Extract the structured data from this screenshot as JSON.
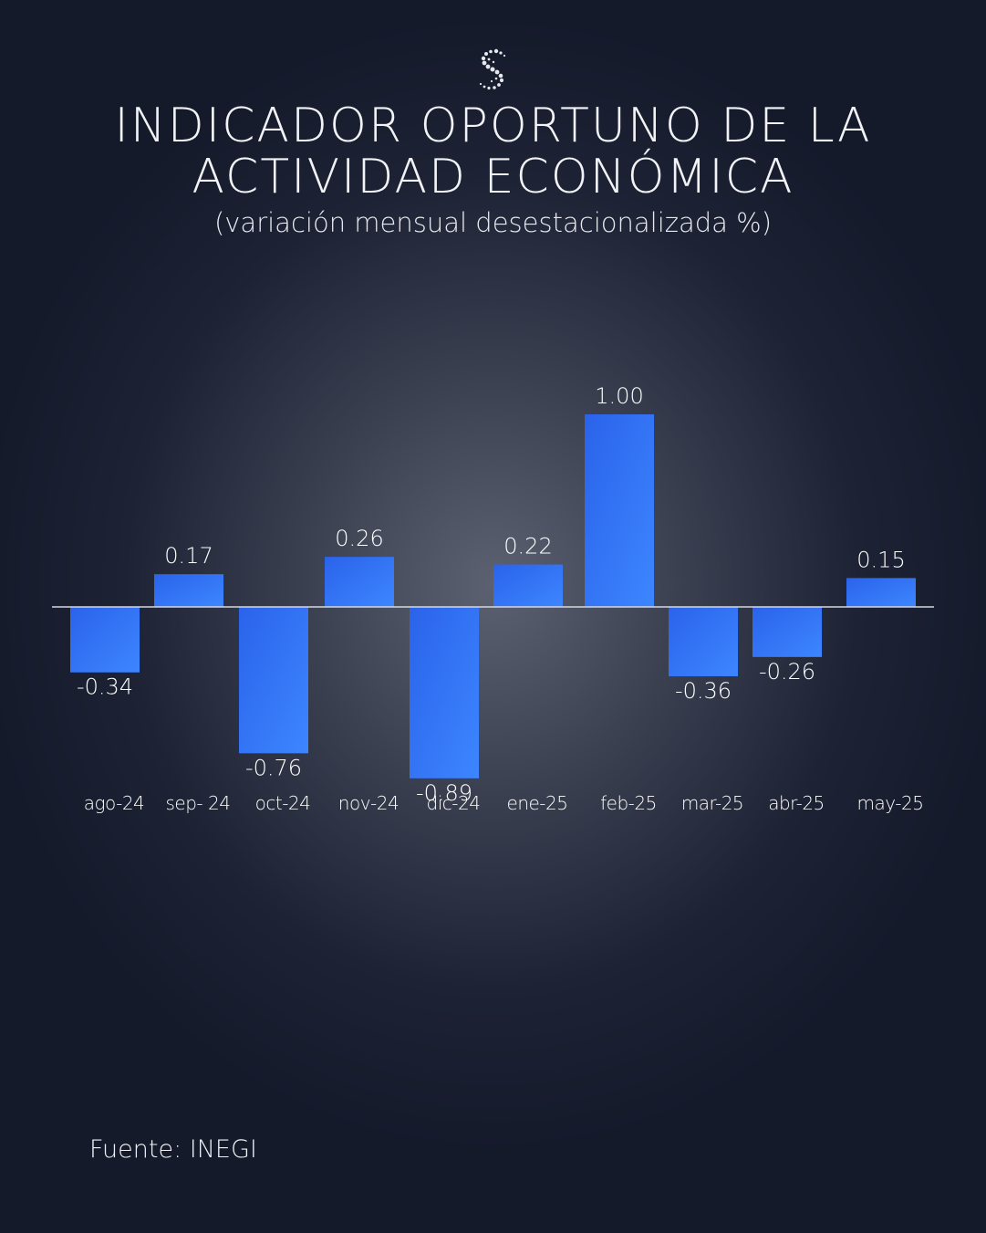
{
  "header": {
    "title_line1": "INDICADOR OPORTUNO DE LA",
    "title_line2": "ACTIVIDAD ECONÓMICA",
    "subtitle": "(variación mensual desestacionalizada %)"
  },
  "footer": {
    "source": "Fuente: INEGI"
  },
  "logo": {
    "icon": "s-dots-logo-icon"
  },
  "colors": {
    "bar": "#2f6cf0",
    "bar_light": "#3c82ff",
    "axis": "#d6d8df",
    "text": "#ffffff"
  },
  "chart_data": {
    "type": "bar",
    "title": "INDICADOR OPORTUNO DE LA ACTIVIDAD ECONÓMICA",
    "subtitle": "(variación mensual desestacionalizada %)",
    "xlabel": "",
    "ylabel": "",
    "categories": [
      "ago-24",
      "sep- 24",
      "oct-24",
      "nov-24",
      "dic-24",
      "ene-25",
      "feb-25",
      "mar-25",
      "abr-25",
      "may-25"
    ],
    "values": [
      -0.34,
      0.17,
      -0.76,
      0.26,
      -0.89,
      0.22,
      1.0,
      -0.36,
      -0.26,
      0.15
    ],
    "labels": [
      "-0.34",
      "0.17",
      "-0.76",
      "0.26",
      "-0.89",
      "0.22",
      "1.00",
      "-0.36",
      "-0.26",
      "0.15"
    ],
    "ylim": [
      -0.89,
      1.0
    ],
    "grid": false,
    "legend": "none"
  }
}
